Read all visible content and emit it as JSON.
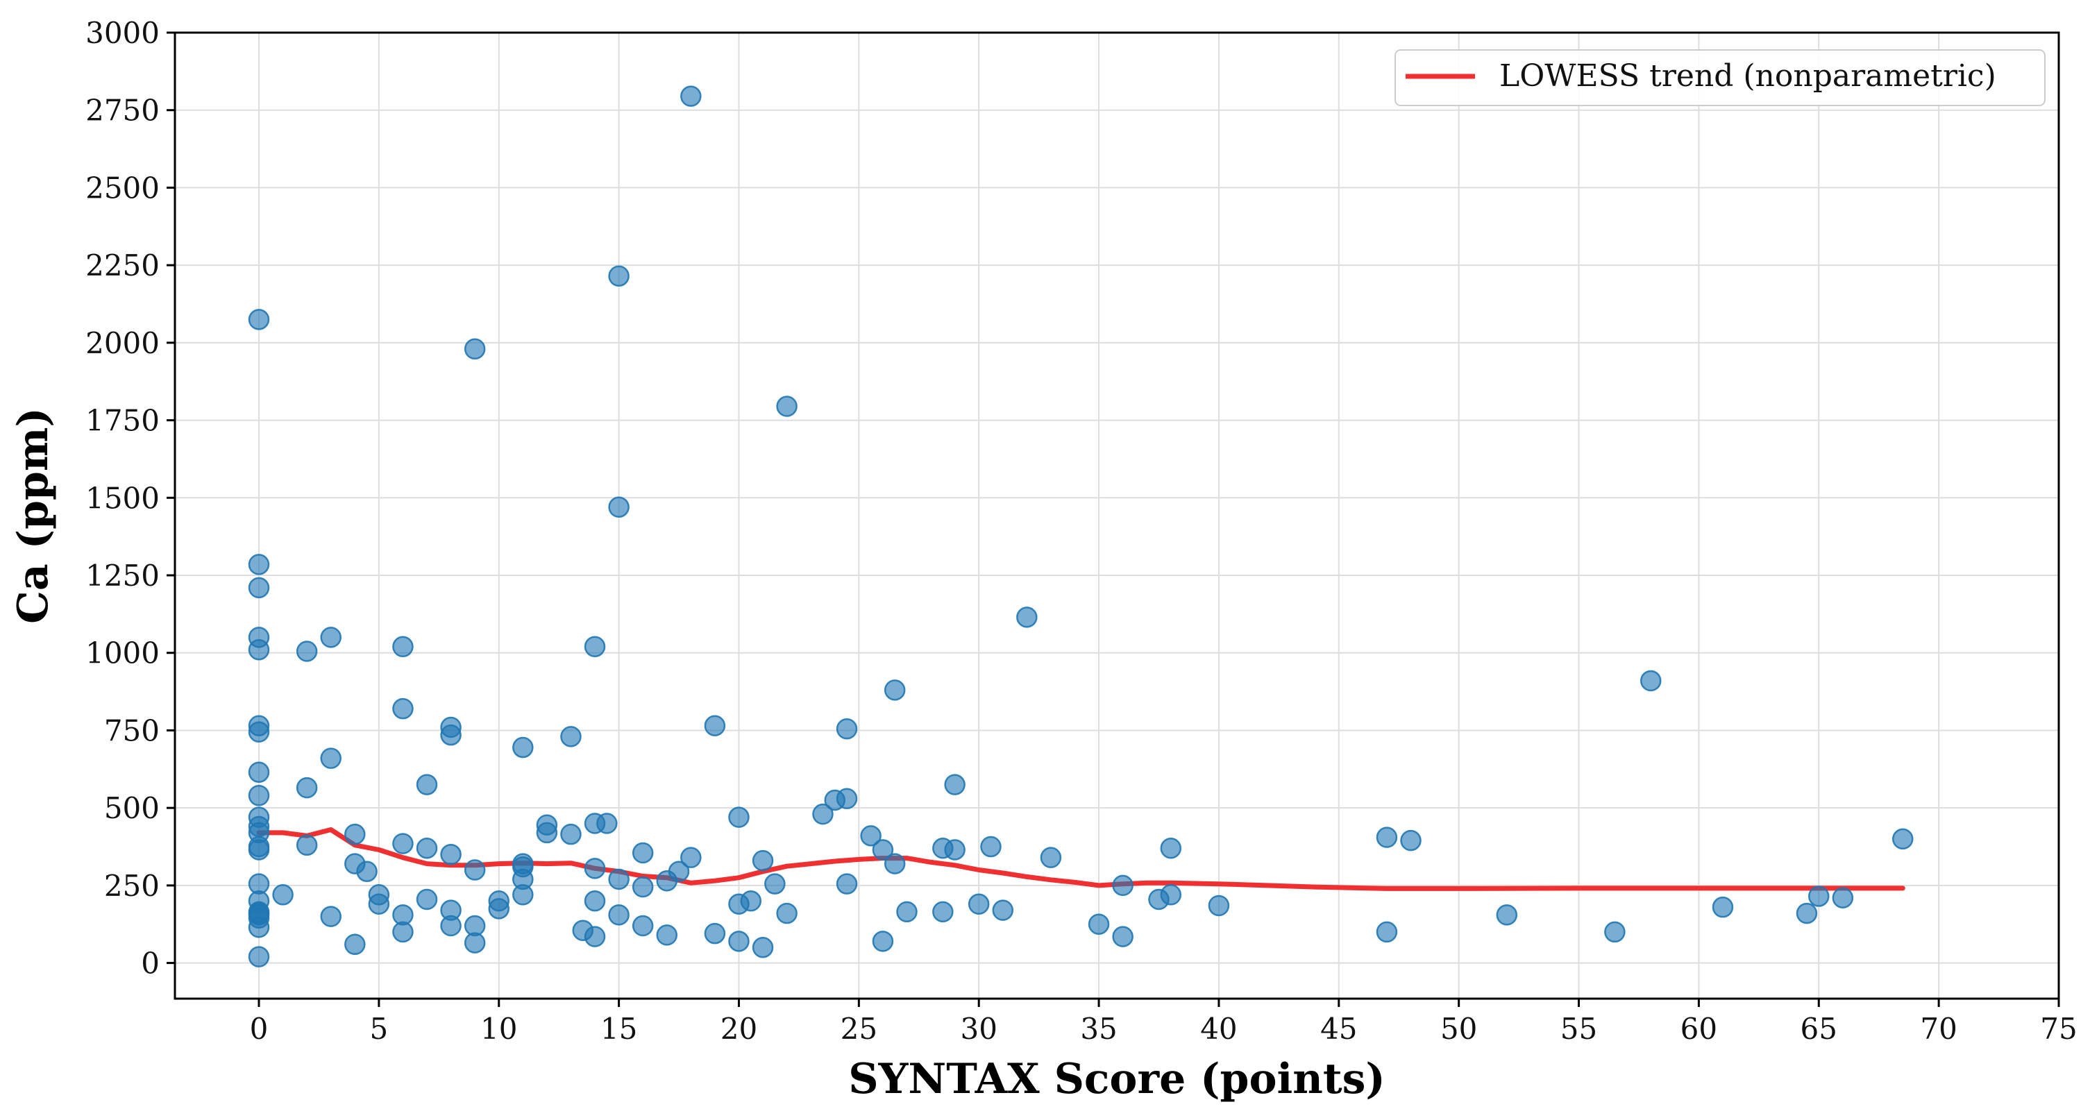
{
  "chart_data": {
    "type": "scatter",
    "title": "",
    "xlabel": "SYNTAX Score (points)",
    "ylabel": "Ca (ppm)",
    "xlim": [
      -3.5,
      75
    ],
    "ylim": [
      -115,
      3000
    ],
    "xticks": [
      0,
      5,
      10,
      15,
      20,
      25,
      30,
      35,
      40,
      45,
      50,
      55,
      60,
      65,
      70,
      75
    ],
    "yticks": [
      0,
      250,
      500,
      750,
      1000,
      1250,
      1500,
      1750,
      2000,
      2250,
      2500,
      2750,
      3000
    ],
    "grid": true,
    "legend": {
      "placement": "top-right",
      "entries": [
        "LOWESS trend (nonparametric)"
      ]
    },
    "colors": {
      "points": "#1f77b4",
      "trend": "#f03030"
    },
    "points": [
      [
        0,
        20
      ],
      [
        0,
        115
      ],
      [
        0,
        145
      ],
      [
        0,
        155
      ],
      [
        0,
        160
      ],
      [
        0,
        165
      ],
      [
        0,
        200
      ],
      [
        0,
        255
      ],
      [
        0,
        365
      ],
      [
        0,
        375
      ],
      [
        0,
        420
      ],
      [
        0,
        440
      ],
      [
        0,
        470
      ],
      [
        0,
        540
      ],
      [
        0,
        615
      ],
      [
        0,
        745
      ],
      [
        0,
        765
      ],
      [
        0,
        1010
      ],
      [
        0,
        1050
      ],
      [
        0,
        1210
      ],
      [
        0,
        1285
      ],
      [
        0,
        2075
      ],
      [
        1,
        220
      ],
      [
        2,
        380
      ],
      [
        2,
        565
      ],
      [
        2,
        1005
      ],
      [
        3,
        150
      ],
      [
        3,
        660
      ],
      [
        3,
        1050
      ],
      [
        4,
        60
      ],
      [
        4,
        320
      ],
      [
        4,
        415
      ],
      [
        4.5,
        295
      ],
      [
        5,
        190
      ],
      [
        5,
        220
      ],
      [
        6,
        100
      ],
      [
        6,
        155
      ],
      [
        6,
        385
      ],
      [
        6,
        820
      ],
      [
        6,
        1020
      ],
      [
        7,
        205
      ],
      [
        7,
        370
      ],
      [
        7,
        575
      ],
      [
        8,
        120
      ],
      [
        8,
        170
      ],
      [
        8,
        350
      ],
      [
        8,
        735
      ],
      [
        8,
        760
      ],
      [
        9,
        65
      ],
      [
        9,
        120
      ],
      [
        9,
        300
      ],
      [
        9,
        1980
      ],
      [
        10,
        175
      ],
      [
        10,
        200
      ],
      [
        11,
        220
      ],
      [
        11,
        270
      ],
      [
        11,
        310
      ],
      [
        11,
        320
      ],
      [
        11,
        695
      ],
      [
        12,
        420
      ],
      [
        12,
        445
      ],
      [
        13,
        415
      ],
      [
        13,
        730
      ],
      [
        13.5,
        105
      ],
      [
        14,
        85
      ],
      [
        14,
        200
      ],
      [
        14,
        305
      ],
      [
        14,
        450
      ],
      [
        14,
        1020
      ],
      [
        14.5,
        450
      ],
      [
        15,
        155
      ],
      [
        15,
        270
      ],
      [
        15,
        1470
      ],
      [
        15,
        2215
      ],
      [
        16,
        120
      ],
      [
        16,
        245
      ],
      [
        16,
        355
      ],
      [
        17,
        90
      ],
      [
        17,
        265
      ],
      [
        17.5,
        295
      ],
      [
        18,
        340
      ],
      [
        18,
        2795
      ],
      [
        19,
        95
      ],
      [
        19,
        765
      ],
      [
        20,
        70
      ],
      [
        20,
        190
      ],
      [
        20,
        470
      ],
      [
        20.5,
        200
      ],
      [
        21,
        50
      ],
      [
        21,
        330
      ],
      [
        21.5,
        255
      ],
      [
        22,
        160
      ],
      [
        22,
        1795
      ],
      [
        23.5,
        480
      ],
      [
        24,
        525
      ],
      [
        24.5,
        255
      ],
      [
        24.5,
        530
      ],
      [
        24.5,
        755
      ],
      [
        25.5,
        410
      ],
      [
        26,
        70
      ],
      [
        26,
        365
      ],
      [
        26.5,
        320
      ],
      [
        26.5,
        880
      ],
      [
        27,
        165
      ],
      [
        28.5,
        165
      ],
      [
        28.5,
        370
      ],
      [
        29,
        365
      ],
      [
        29,
        575
      ],
      [
        30,
        190
      ],
      [
        30.5,
        375
      ],
      [
        31,
        170
      ],
      [
        32,
        1115
      ],
      [
        33,
        340
      ],
      [
        35,
        125
      ],
      [
        36,
        85
      ],
      [
        36,
        250
      ],
      [
        37.5,
        205
      ],
      [
        38,
        220
      ],
      [
        38,
        370
      ],
      [
        40,
        185
      ],
      [
        47,
        100
      ],
      [
        47,
        405
      ],
      [
        48,
        395
      ],
      [
        52,
        155
      ],
      [
        56.5,
        100
      ],
      [
        58,
        910
      ],
      [
        61,
        180
      ],
      [
        64.5,
        160
      ],
      [
        65,
        215
      ],
      [
        66,
        210
      ],
      [
        68.5,
        400
      ]
    ],
    "trend": [
      [
        0,
        420
      ],
      [
        1,
        420
      ],
      [
        2,
        410
      ],
      [
        3,
        430
      ],
      [
        4,
        380
      ],
      [
        5,
        365
      ],
      [
        6,
        340
      ],
      [
        7,
        320
      ],
      [
        8,
        315
      ],
      [
        9,
        315
      ],
      [
        10,
        320
      ],
      [
        11,
        322
      ],
      [
        12,
        320
      ],
      [
        13,
        322
      ],
      [
        14,
        305
      ],
      [
        15,
        295
      ],
      [
        16,
        280
      ],
      [
        17,
        275
      ],
      [
        18,
        258
      ],
      [
        19,
        265
      ],
      [
        20,
        275
      ],
      [
        21,
        295
      ],
      [
        22,
        312
      ],
      [
        23,
        320
      ],
      [
        24,
        328
      ],
      [
        25,
        334
      ],
      [
        26,
        338
      ],
      [
        27,
        338
      ],
      [
        28,
        325
      ],
      [
        29,
        315
      ],
      [
        30,
        300
      ],
      [
        31,
        290
      ],
      [
        32,
        278
      ],
      [
        33,
        268
      ],
      [
        34,
        260
      ],
      [
        35,
        250
      ],
      [
        36,
        255
      ],
      [
        37,
        258
      ],
      [
        38,
        258
      ],
      [
        40,
        255
      ],
      [
        42,
        250
      ],
      [
        44,
        245
      ],
      [
        47,
        240
      ],
      [
        50,
        240
      ],
      [
        55,
        241
      ],
      [
        60,
        241
      ],
      [
        65,
        241
      ],
      [
        68.5,
        241
      ]
    ]
  }
}
